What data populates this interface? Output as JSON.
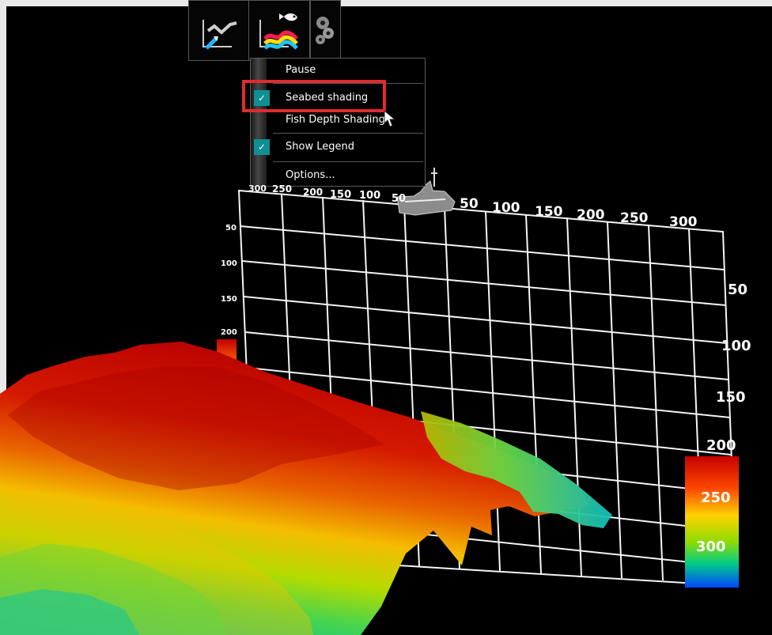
{
  "toolbar": {
    "buttons": [
      {
        "name": "depth-trace-button",
        "icon": "line-chart-cursor-icon"
      },
      {
        "name": "fish-shading-button",
        "icon": "fish-color-chart-icon"
      },
      {
        "name": "settings-button",
        "icon": "gear-icon"
      }
    ]
  },
  "menu": {
    "items": [
      {
        "label": "Pause",
        "checked": false
      },
      {
        "label": "Seabed shading",
        "checked": true
      },
      {
        "label": "Fish Depth Shading",
        "checked": false
      },
      {
        "label": "Show Legend",
        "checked": true
      },
      {
        "label": "Options...",
        "checked": false
      }
    ]
  },
  "axes": {
    "top_ticks": [
      "300",
      "250",
      "200",
      "150",
      "100",
      "50",
      "50",
      "100",
      "150",
      "200",
      "250",
      "300"
    ],
    "left_ticks": [
      "50",
      "100",
      "150",
      "200"
    ],
    "right_ticks": [
      "50",
      "100",
      "150",
      "200"
    ]
  },
  "legend": {
    "labels": [
      "250",
      "300"
    ],
    "colors": [
      "#d70a00",
      "#ff5a00",
      "#ffd000",
      "#9be000",
      "#10d070",
      "#00b4d8",
      "#0044ff"
    ]
  },
  "colors": {
    "highlight": "#e12a2f",
    "check": "#0f8f93",
    "background": "#000000"
  }
}
